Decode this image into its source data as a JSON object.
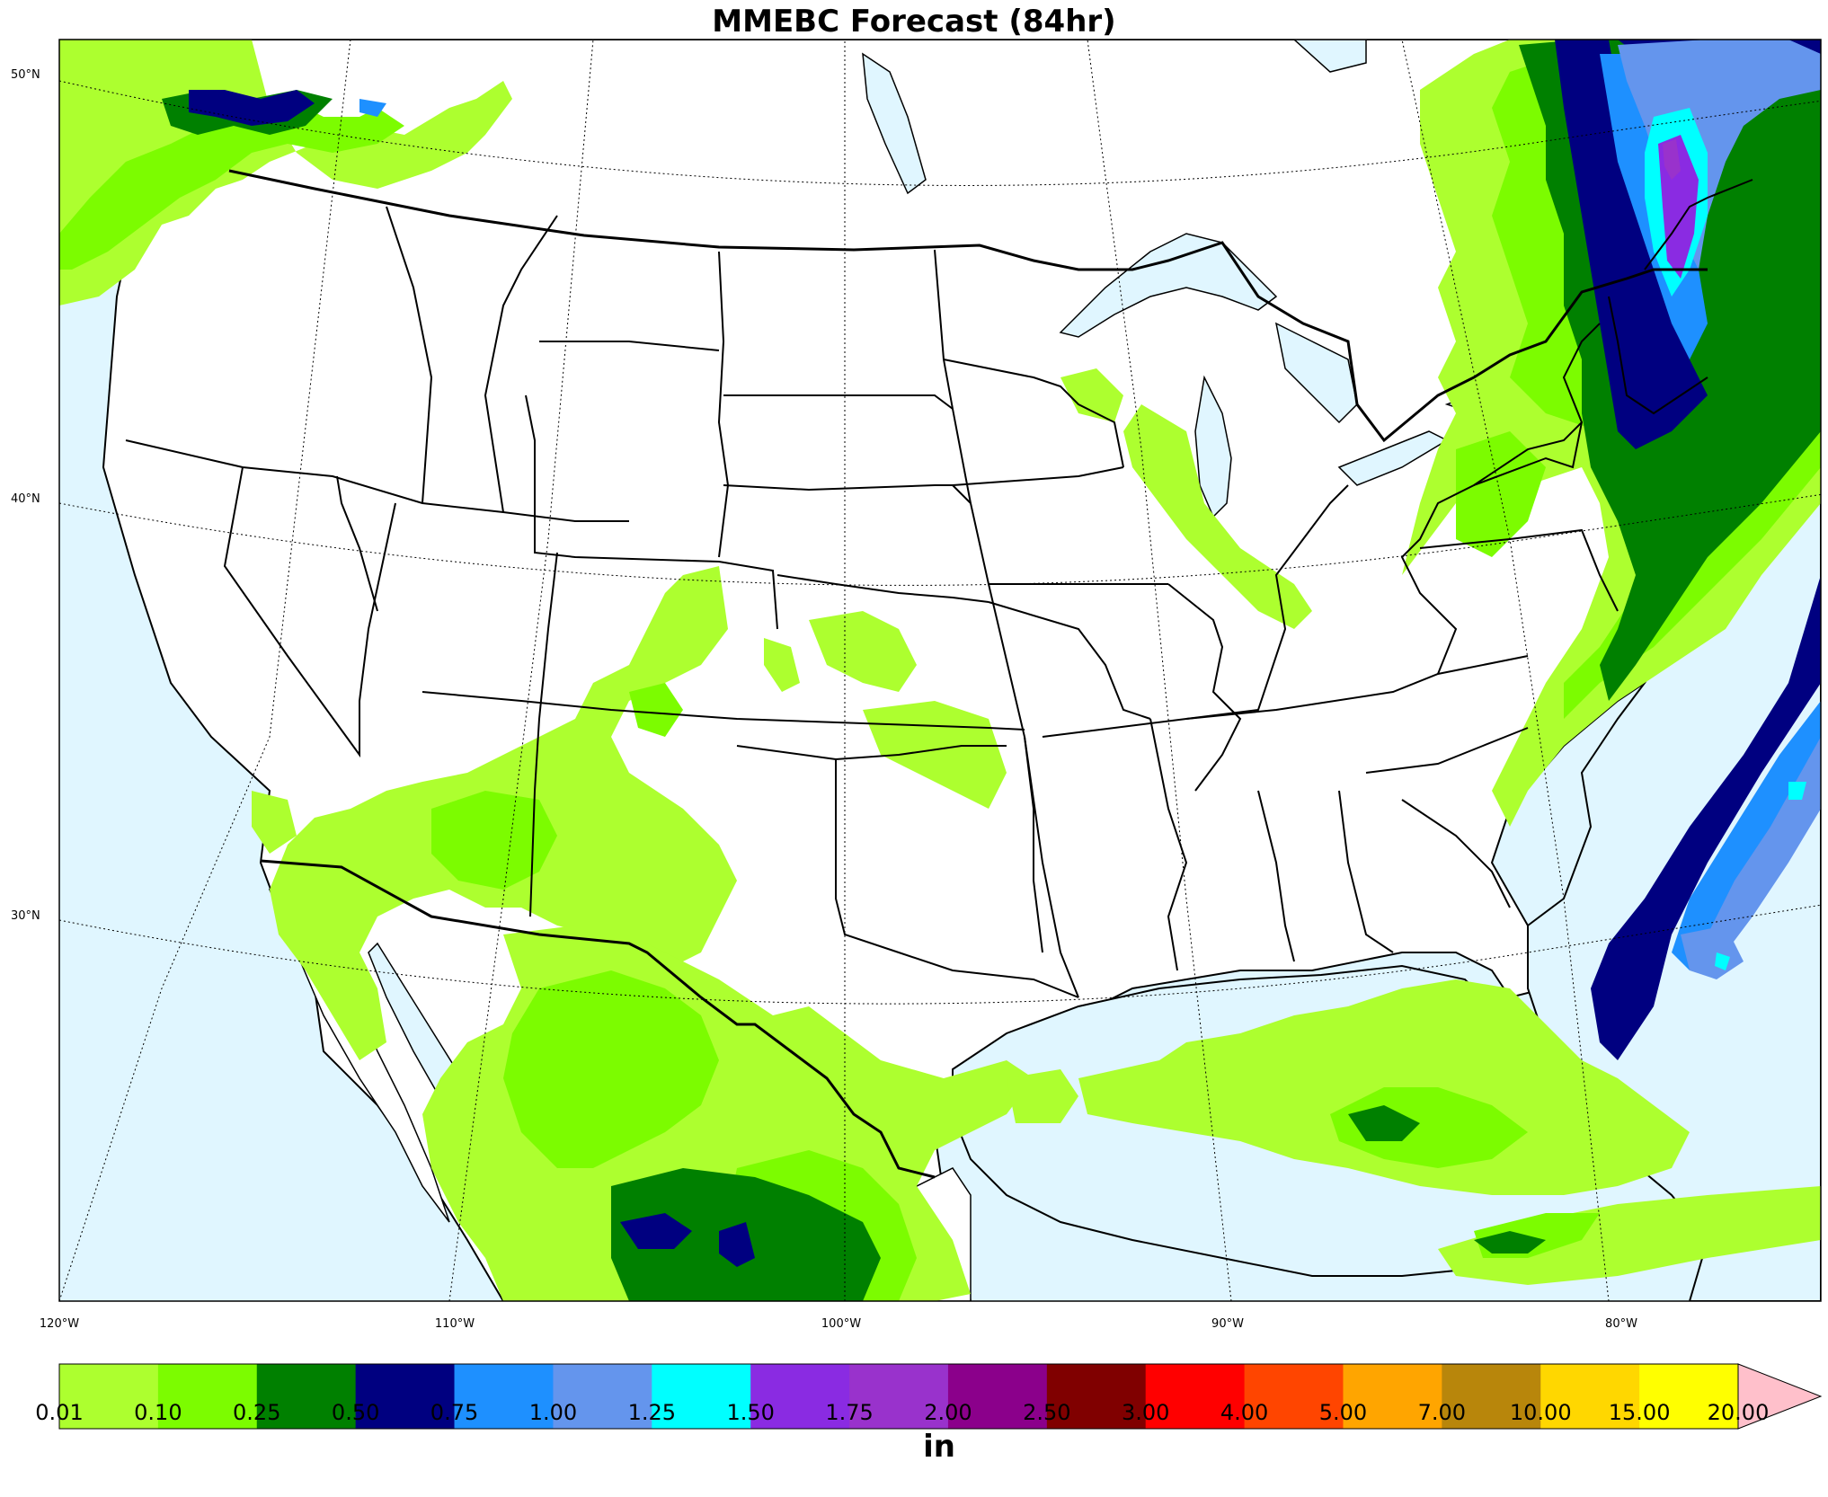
{
  "title": "MMEBC Forecast (84hr)",
  "units_label": "in",
  "lat_labels": [
    "50°N",
    "40°N",
    "30°N"
  ],
  "lon_labels": [
    "120°W",
    "110°W",
    "100°W",
    "90°W",
    "80°W"
  ],
  "colorbar": {
    "ticks": [
      "0.01",
      "0.10",
      "0.25",
      "0.50",
      "0.75",
      "1.00",
      "1.25",
      "1.50",
      "1.75",
      "2.00",
      "2.50",
      "3.00",
      "4.00",
      "5.00",
      "7.00",
      "10.00",
      "15.00",
      "20.00"
    ],
    "colors": [
      "#adff2f",
      "#7cfc00",
      "#008000",
      "#000080",
      "#1e90ff",
      "#6495ed",
      "#00ffff",
      "#8a2be2",
      "#9932cc",
      "#8b008b",
      "#800000",
      "#ff0000",
      "#ff4500",
      "#ffa500",
      "#b8860b",
      "#ffd700",
      "#ffff00"
    ],
    "extend_color": "#ffc0cb"
  },
  "colors": {
    "ocean": "#e0f6ff",
    "land": "#ffffff",
    "border": "#000000"
  }
}
